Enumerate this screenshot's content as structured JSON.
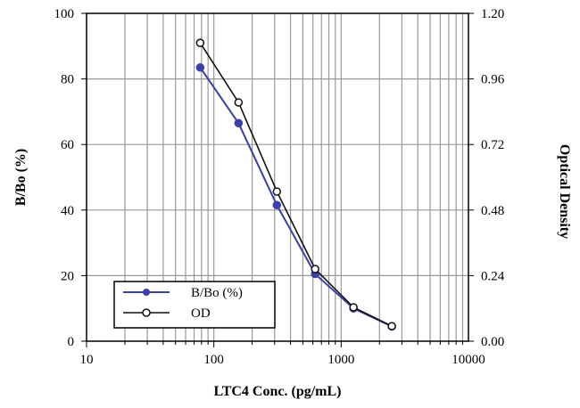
{
  "chart_data": {
    "type": "line",
    "xlabel": "LTC4 Conc. (pg/mL)",
    "ylabel": "B/Bo (%)",
    "y2label": "Optical Density",
    "xscale": "log",
    "xlim": [
      10,
      10000
    ],
    "ylim": [
      0,
      100
    ],
    "y2lim": [
      0,
      1.2
    ],
    "xticks": [
      "10",
      "100",
      "1000",
      "10000"
    ],
    "yticks": [
      "0",
      "20",
      "40",
      "60",
      "80",
      "100"
    ],
    "y2ticks": [
      "0.00",
      "0.24",
      "0.48",
      "0.72",
      "0.96",
      "1.20"
    ],
    "grid": true,
    "legend_position": "bottom-left",
    "x": [
      78.1,
      156.3,
      312.5,
      625,
      1250,
      2500
    ],
    "series": [
      {
        "name": "B/Bo (%)",
        "axis": "left",
        "color": "#3b3fa8",
        "marker": "filled-circle",
        "values": [
          83.5,
          66.5,
          41.5,
          20.5,
          10,
          4.5
        ]
      },
      {
        "name": "OD",
        "axis": "right",
        "color": "#111111",
        "marker": "open-circle",
        "values": [
          1.092,
          0.874,
          0.548,
          0.264,
          0.124,
          0.055
        ]
      }
    ]
  }
}
